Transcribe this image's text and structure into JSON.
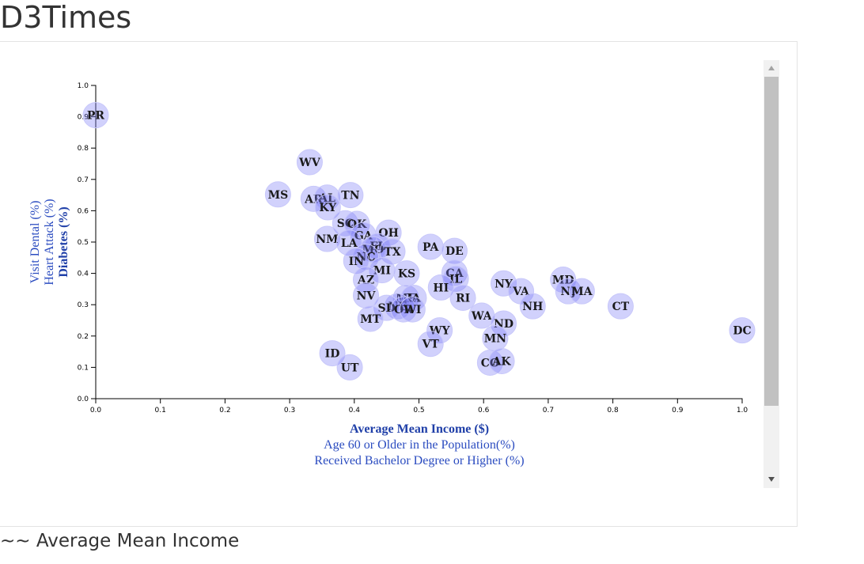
{
  "title": "D3Times",
  "section_heading": "~~ Average Mean Income",
  "chart_data": {
    "type": "scatter",
    "x_axis": {
      "range": [
        0,
        1
      ],
      "ticks": [
        "0.0",
        "0.1",
        "0.2",
        "0.3",
        "0.4",
        "0.5",
        "0.6",
        "0.7",
        "0.8",
        "0.9",
        "1.0"
      ],
      "labels": [
        "Average Mean Income ($)",
        "Age 60 or Older in the Population(%)",
        "Received Bachelor Degree or Higher (%)"
      ],
      "active_label": 0
    },
    "y_axis": {
      "range": [
        0,
        1
      ],
      "ticks": [
        "0.0",
        "0.1",
        "0.2",
        "0.3",
        "0.4",
        "0.5",
        "0.6",
        "0.7",
        "0.8",
        "0.9",
        "1.0"
      ],
      "labels": [
        "Diabetes (%)",
        "Heart Attack (%)",
        "Visit Dental (%)"
      ],
      "active_label": 0
    },
    "point_color": "#7b7bf5",
    "points": [
      {
        "label": "PR",
        "x": 0.0,
        "y": 0.905
      },
      {
        "label": "WV",
        "x": 0.331,
        "y": 0.755
      },
      {
        "label": "MS",
        "x": 0.282,
        "y": 0.652
      },
      {
        "label": "AR",
        "x": 0.337,
        "y": 0.638
      },
      {
        "label": "AL",
        "x": 0.358,
        "y": 0.642
      },
      {
        "label": "TN",
        "x": 0.394,
        "y": 0.65
      },
      {
        "label": "KY",
        "x": 0.359,
        "y": 0.611
      },
      {
        "label": "SC",
        "x": 0.386,
        "y": 0.56
      },
      {
        "label": "OK",
        "x": 0.404,
        "y": 0.558
      },
      {
        "label": "OH",
        "x": 0.453,
        "y": 0.53
      },
      {
        "label": "GA",
        "x": 0.414,
        "y": 0.522
      },
      {
        "label": "NM",
        "x": 0.358,
        "y": 0.51
      },
      {
        "label": "LA",
        "x": 0.392,
        "y": 0.498
      },
      {
        "label": "FL",
        "x": 0.436,
        "y": 0.487
      },
      {
        "label": "MO",
        "x": 0.429,
        "y": 0.477
      },
      {
        "label": "TX",
        "x": 0.459,
        "y": 0.47
      },
      {
        "label": "NC",
        "x": 0.418,
        "y": 0.453
      },
      {
        "label": "IN",
        "x": 0.403,
        "y": 0.44
      },
      {
        "label": "PA",
        "x": 0.518,
        "y": 0.485
      },
      {
        "label": "DE",
        "x": 0.555,
        "y": 0.472
      },
      {
        "label": "MI",
        "x": 0.443,
        "y": 0.41
      },
      {
        "label": "KS",
        "x": 0.481,
        "y": 0.4
      },
      {
        "label": "CA",
        "x": 0.555,
        "y": 0.402
      },
      {
        "label": "AZ",
        "x": 0.418,
        "y": 0.38
      },
      {
        "label": "IL",
        "x": 0.557,
        "y": 0.383
      },
      {
        "label": "HI",
        "x": 0.534,
        "y": 0.355
      },
      {
        "label": "NY",
        "x": 0.631,
        "y": 0.368
      },
      {
        "label": "MD",
        "x": 0.723,
        "y": 0.38
      },
      {
        "label": "VA",
        "x": 0.658,
        "y": 0.343
      },
      {
        "label": "NJ",
        "x": 0.731,
        "y": 0.343
      },
      {
        "label": "MA",
        "x": 0.752,
        "y": 0.343
      },
      {
        "label": "NV",
        "x": 0.418,
        "y": 0.33
      },
      {
        "label": "RI",
        "x": 0.568,
        "y": 0.322
      },
      {
        "label": "ME",
        "x": 0.48,
        "y": 0.322
      },
      {
        "label": "IA",
        "x": 0.492,
        "y": 0.322
      },
      {
        "label": "NE",
        "x": 0.467,
        "y": 0.295
      },
      {
        "label": "SD",
        "x": 0.45,
        "y": 0.29
      },
      {
        "label": "OR",
        "x": 0.476,
        "y": 0.285
      },
      {
        "label": "WI",
        "x": 0.49,
        "y": 0.285
      },
      {
        "label": "NH",
        "x": 0.676,
        "y": 0.295
      },
      {
        "label": "CT",
        "x": 0.812,
        "y": 0.295
      },
      {
        "label": "WA",
        "x": 0.597,
        "y": 0.265
      },
      {
        "label": "MT",
        "x": 0.425,
        "y": 0.255
      },
      {
        "label": "ND",
        "x": 0.631,
        "y": 0.24
      },
      {
        "label": "WY",
        "x": 0.532,
        "y": 0.218
      },
      {
        "label": "DC",
        "x": 1.0,
        "y": 0.218
      },
      {
        "label": "MN",
        "x": 0.618,
        "y": 0.193
      },
      {
        "label": "VT",
        "x": 0.518,
        "y": 0.175
      },
      {
        "label": "ID",
        "x": 0.366,
        "y": 0.145
      },
      {
        "label": "CO",
        "x": 0.61,
        "y": 0.115
      },
      {
        "label": "AK",
        "x": 0.628,
        "y": 0.12
      },
      {
        "label": "UT",
        "x": 0.393,
        "y": 0.1
      }
    ]
  }
}
